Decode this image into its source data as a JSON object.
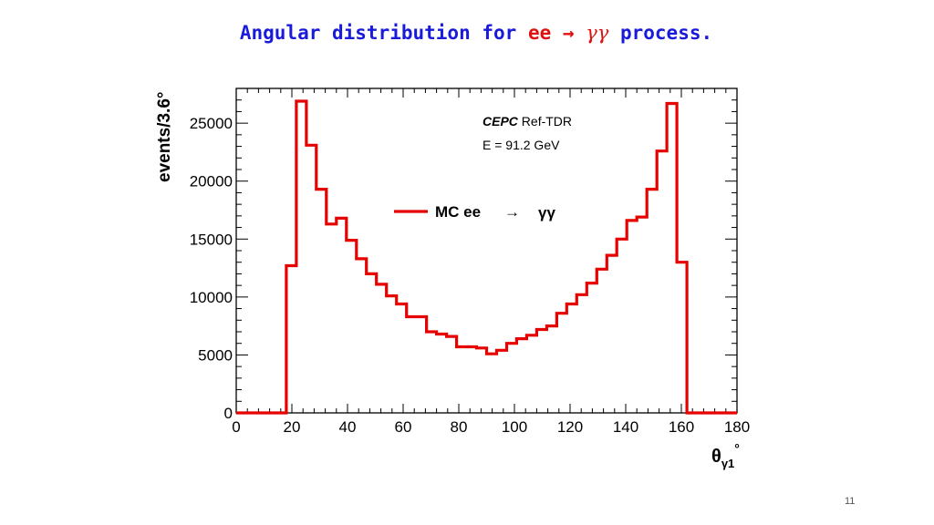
{
  "slide": {
    "title_pre": "Angular distribution for",
    "title_ee": "ee",
    "title_arrow": "→",
    "title_gamma": "γγ",
    "title_post": "process.",
    "page_number": "11"
  },
  "chart_data": {
    "type": "histogram",
    "ylabel": "events/3.6°",
    "xlabel_main": "θ",
    "xlabel_sub": "γ1",
    "xlabel_sup": "°",
    "xlim": [
      0,
      180
    ],
    "ylim": [
      0,
      28000
    ],
    "x_ticks": [
      0,
      20,
      40,
      60,
      80,
      100,
      120,
      140,
      160,
      180
    ],
    "y_ticks": [
      0,
      5000,
      10000,
      15000,
      20000,
      25000
    ],
    "bin_width": 3.6,
    "bin_edges_start": 0,
    "values": [
      0,
      0,
      0,
      0,
      0,
      12700,
      26900,
      23100,
      19300,
      16300,
      16800,
      14900,
      13300,
      12000,
      11100,
      10100,
      9400,
      8300,
      8300,
      7000,
      6800,
      6600,
      5700,
      5700,
      5600,
      5100,
      5400,
      6000,
      6400,
      6700,
      7200,
      7500,
      8600,
      9400,
      10200,
      11200,
      12400,
      13600,
      15000,
      16600,
      16900,
      19300,
      22600,
      26700,
      13000,
      0,
      0,
      0,
      0,
      0
    ],
    "line_color": "#e60000",
    "legend": {
      "label": "MC ee",
      "arrow": "→",
      "gamma": "γγ",
      "position": "upper-center"
    },
    "annotations": {
      "experiment": "CEPC",
      "tag": "Ref-TDR",
      "energy": "E = 91.2 GeV"
    },
    "grid": false
  }
}
